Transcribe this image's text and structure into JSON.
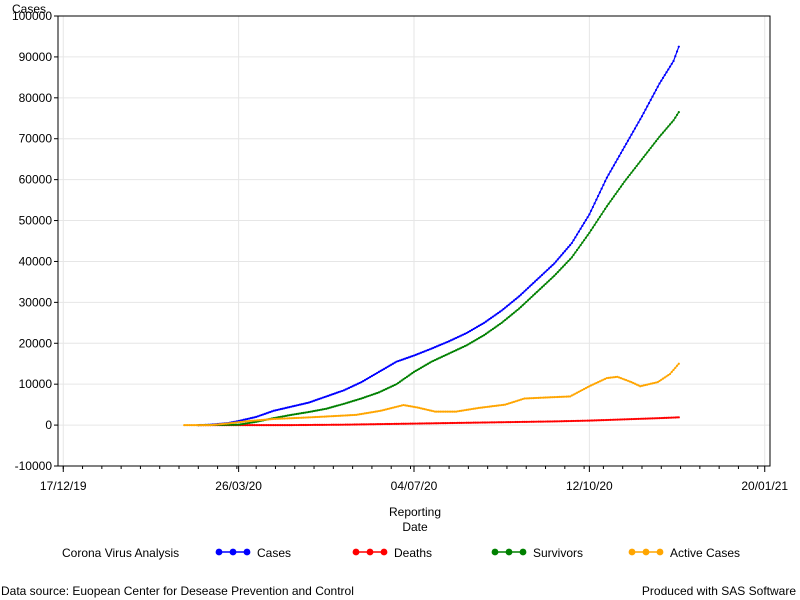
{
  "footnote_left": "Data source: Euopean Center for Desease Prevention and Control",
  "footnote_right": "Produced with SAS Software",
  "chart_data": {
    "type": "line",
    "title": "",
    "ylabel": "Cases",
    "xlabel_lines": [
      "Reporting",
      "Date"
    ],
    "ylim": [
      -10000,
      100000
    ],
    "yticks": [
      -10000,
      0,
      10000,
      20000,
      30000,
      40000,
      50000,
      60000,
      70000,
      80000,
      90000,
      100000
    ],
    "xlim": [
      "2019-12-14",
      "2021-01-23"
    ],
    "xticks": [
      {
        "date": "2019-12-17",
        "label": "17/12/19"
      },
      {
        "date": "2020-03-26",
        "label": "26/03/20"
      },
      {
        "date": "2020-07-04",
        "label": "04/07/20"
      },
      {
        "date": "2020-10-12",
        "label": "12/10/20"
      },
      {
        "date": "2021-01-20",
        "label": "20/01/21"
      }
    ],
    "grid": true,
    "legend_title": "Corona Virus Analysis",
    "legend_position": "bottom",
    "series": [
      {
        "name": "Cases",
        "color": "#0000FF",
        "points": [
          [
            "2020-03-03",
            0
          ],
          [
            "2020-03-10",
            100
          ],
          [
            "2020-03-20",
            500
          ],
          [
            "2020-03-26",
            1000
          ],
          [
            "2020-04-05",
            2000
          ],
          [
            "2020-04-15",
            3500
          ],
          [
            "2020-04-25",
            4500
          ],
          [
            "2020-05-05",
            5500
          ],
          [
            "2020-05-15",
            7000
          ],
          [
            "2020-05-25",
            8500
          ],
          [
            "2020-06-04",
            10500
          ],
          [
            "2020-06-14",
            13000
          ],
          [
            "2020-06-24",
            15500
          ],
          [
            "2020-07-04",
            17000
          ],
          [
            "2020-07-14",
            18700
          ],
          [
            "2020-07-24",
            20500
          ],
          [
            "2020-08-03",
            22500
          ],
          [
            "2020-08-13",
            25000
          ],
          [
            "2020-08-23",
            28000
          ],
          [
            "2020-09-02",
            31500
          ],
          [
            "2020-09-12",
            35500
          ],
          [
            "2020-09-22",
            39500
          ],
          [
            "2020-10-02",
            44500
          ],
          [
            "2020-10-12",
            51500
          ],
          [
            "2020-10-22",
            60500
          ],
          [
            "2020-11-01",
            68000
          ],
          [
            "2020-11-11",
            75500
          ],
          [
            "2020-11-21",
            83500
          ],
          [
            "2020-11-29",
            89000
          ],
          [
            "2020-12-02",
            92500
          ]
        ]
      },
      {
        "name": "Deaths",
        "color": "#FF0000",
        "points": [
          [
            "2020-03-03",
            0
          ],
          [
            "2020-03-26",
            0
          ],
          [
            "2020-04-25",
            0
          ],
          [
            "2020-05-25",
            100
          ],
          [
            "2020-06-24",
            300
          ],
          [
            "2020-07-24",
            500
          ],
          [
            "2020-08-23",
            700
          ],
          [
            "2020-09-22",
            900
          ],
          [
            "2020-10-12",
            1100
          ],
          [
            "2020-11-01",
            1400
          ],
          [
            "2020-11-21",
            1700
          ],
          [
            "2020-12-02",
            1900
          ]
        ]
      },
      {
        "name": "Survivors",
        "color": "#008000",
        "points": [
          [
            "2020-03-03",
            0
          ],
          [
            "2020-03-26",
            100
          ],
          [
            "2020-04-05",
            800
          ],
          [
            "2020-04-15",
            1700
          ],
          [
            "2020-04-25",
            2500
          ],
          [
            "2020-05-05",
            3200
          ],
          [
            "2020-05-15",
            4000
          ],
          [
            "2020-05-25",
            5200
          ],
          [
            "2020-06-04",
            6500
          ],
          [
            "2020-06-14",
            8000
          ],
          [
            "2020-06-24",
            10000
          ],
          [
            "2020-07-04",
            13000
          ],
          [
            "2020-07-14",
            15500
          ],
          [
            "2020-07-24",
            17500
          ],
          [
            "2020-08-03",
            19500
          ],
          [
            "2020-08-13",
            22000
          ],
          [
            "2020-08-23",
            25000
          ],
          [
            "2020-09-02",
            28500
          ],
          [
            "2020-09-12",
            32500
          ],
          [
            "2020-09-22",
            36500
          ],
          [
            "2020-10-02",
            41000
          ],
          [
            "2020-10-12",
            47000
          ],
          [
            "2020-10-22",
            53500
          ],
          [
            "2020-11-01",
            59500
          ],
          [
            "2020-11-11",
            65000
          ],
          [
            "2020-11-21",
            70500
          ],
          [
            "2020-11-29",
            74500
          ],
          [
            "2020-12-02",
            76500
          ]
        ]
      },
      {
        "name": "Active Cases",
        "color": "#FFA500",
        "points": [
          [
            "2020-02-24",
            0
          ],
          [
            "2020-03-10",
            0
          ],
          [
            "2020-03-20",
            400
          ],
          [
            "2020-04-01",
            1000
          ],
          [
            "2020-04-15",
            1500
          ],
          [
            "2020-05-01",
            1800
          ],
          [
            "2020-05-15",
            2100
          ],
          [
            "2020-06-01",
            2500
          ],
          [
            "2020-06-15",
            3500
          ],
          [
            "2020-06-28",
            4900
          ],
          [
            "2020-07-06",
            4300
          ],
          [
            "2020-07-16",
            3300
          ],
          [
            "2020-07-28",
            3300
          ],
          [
            "2020-08-10",
            4200
          ],
          [
            "2020-08-25",
            5000
          ],
          [
            "2020-09-05",
            6500
          ],
          [
            "2020-09-20",
            6800
          ],
          [
            "2020-10-01",
            7000
          ],
          [
            "2020-10-12",
            9500
          ],
          [
            "2020-10-22",
            11500
          ],
          [
            "2020-10-28",
            11800
          ],
          [
            "2020-11-05",
            10500
          ],
          [
            "2020-11-10",
            9500
          ],
          [
            "2020-11-20",
            10500
          ],
          [
            "2020-11-27",
            12500
          ],
          [
            "2020-12-02",
            15000
          ]
        ]
      }
    ]
  }
}
